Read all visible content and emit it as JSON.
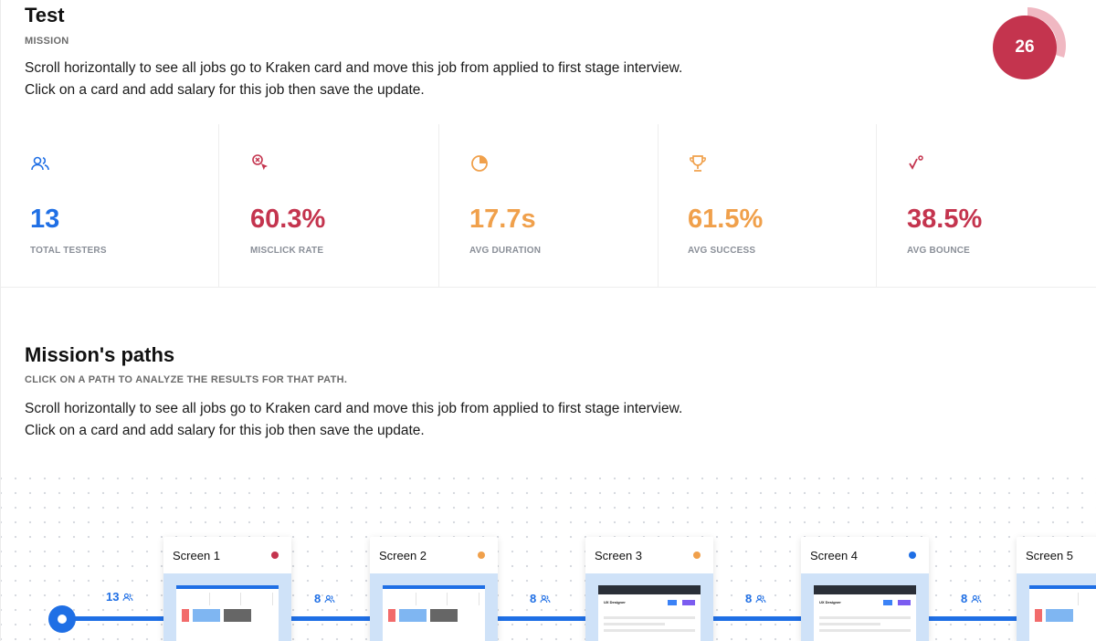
{
  "header": {
    "title": "Test",
    "mission_label": "MISSION",
    "description_line1": "Scroll horizontally to see all jobs go to Kraken card and move this job from applied to first stage interview.",
    "description_line2": "Click on a card and add salary for this job then save the update.",
    "score": "26",
    "score_fill_fraction": 0.3,
    "score_color": "#c4344e"
  },
  "stats": [
    {
      "icon": "users-icon",
      "value": "13",
      "label": "TOTAL TESTERS",
      "color": "#1f6fe5"
    },
    {
      "icon": "misclick-icon",
      "value": "60.3%",
      "label": "MISCLICK RATE",
      "color": "#c4344e"
    },
    {
      "icon": "pie-clock-icon",
      "value": "17.7s",
      "label": "AVG DURATION",
      "color": "#f0a04b"
    },
    {
      "icon": "trophy-icon",
      "value": "61.5%",
      "label": "AVG SUCCESS",
      "color": "#f0a04b"
    },
    {
      "icon": "bounce-icon",
      "value": "38.5%",
      "label": "AVG BOUNCE",
      "color": "#c4344e"
    }
  ],
  "paths": {
    "title": "Mission's paths",
    "subtitle": "CLICK ON A PATH TO ANALYZE THE RESULTS FOR THAT PATH.",
    "description_line1": "Scroll horizontally to see all jobs go to Kraken card and move this job from applied to first stage interview.",
    "description_line2": "Click on a card and add salary for this job then save the update.",
    "start_count": "13",
    "screens": [
      {
        "label": "Screen 1",
        "status_color": "#c4344e",
        "count_after": "8"
      },
      {
        "label": "Screen 2",
        "status_color": "#f0a04b",
        "count_after": "8"
      },
      {
        "label": "Screen 3",
        "status_color": "#f0a04b",
        "count_after": "8"
      },
      {
        "label": "Screen 4",
        "status_color": "#1f6fe5",
        "count_after": "8"
      },
      {
        "label": "Screen 5",
        "status_color": "#1f6fe5",
        "count_after": ""
      }
    ]
  }
}
